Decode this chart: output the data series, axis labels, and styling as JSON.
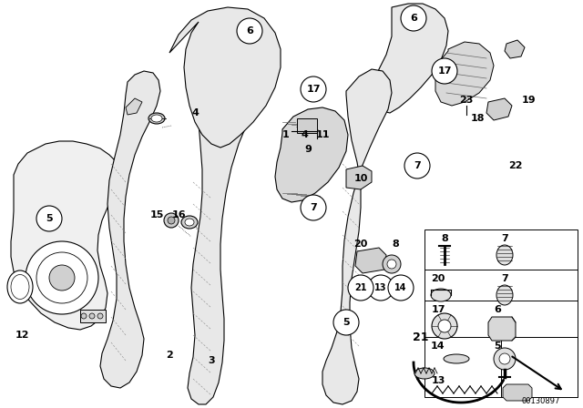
{
  "bg_color": "#ffffff",
  "fig_width": 6.4,
  "fig_height": 4.48,
  "dpi": 100,
  "diagram_id": "00130897",
  "line_color": "#000000",
  "text_color": "#000000"
}
